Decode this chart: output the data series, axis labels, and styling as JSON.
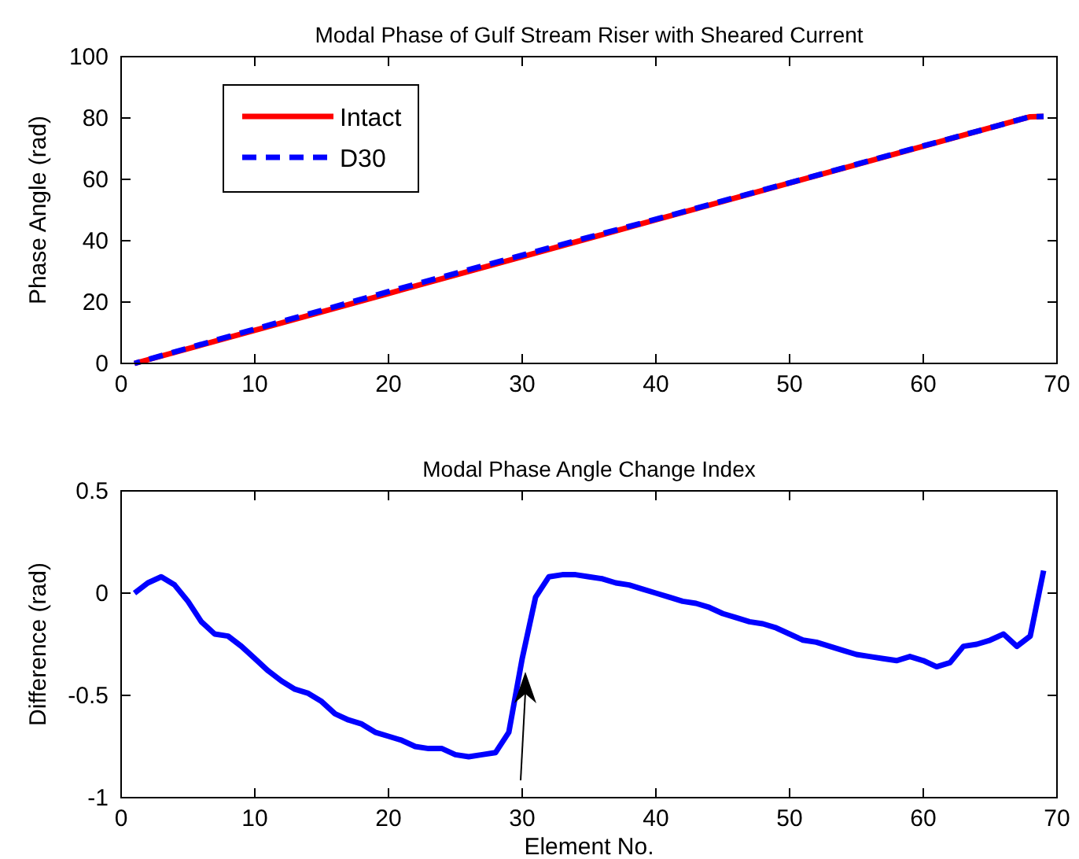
{
  "chart_data": [
    {
      "type": "line",
      "title": "Modal Phase of Gulf Stream Riser with Sheared Current",
      "ylabel": "Phase Angle (rad)",
      "xlim": [
        0,
        70
      ],
      "xticks": [
        0,
        10,
        20,
        30,
        40,
        50,
        60,
        70
      ],
      "ylim": [
        0,
        100
      ],
      "yticks": [
        0,
        20,
        40,
        60,
        80,
        100
      ],
      "legend": "top left",
      "series": [
        {
          "name": "Intact",
          "color": "#ff0000",
          "line_style": "solid",
          "x": [
            1,
            10,
            20,
            30,
            40,
            50,
            60,
            68,
            69
          ],
          "values": [
            0,
            10.8,
            22.8,
            34.8,
            46.8,
            58.8,
            70.8,
            80.4,
            80.5
          ]
        },
        {
          "name": "D30",
          "color": "#0000ff",
          "line_style": "dashed",
          "x": [
            1,
            10,
            20,
            30,
            40,
            50,
            60,
            68,
            69
          ],
          "values": [
            0,
            11.2,
            23.4,
            35.3,
            47.0,
            58.9,
            70.9,
            80.4,
            80.5
          ]
        }
      ]
    },
    {
      "type": "line",
      "title": "Modal Phase Angle Change Index",
      "xlabel": "Element No.",
      "ylabel": "Difference (rad)",
      "xlim": [
        0,
        70
      ],
      "xticks": [
        0,
        10,
        20,
        30,
        40,
        50,
        60,
        70
      ],
      "ylim": [
        -1,
        0.5
      ],
      "yticks": [
        -1,
        -0.5,
        0,
        0.5
      ],
      "series": [
        {
          "color": "#0000ff",
          "line_style": "solid",
          "x": [
            1,
            2,
            3,
            4,
            5,
            6,
            7,
            8,
            9,
            10,
            11,
            12,
            13,
            14,
            15,
            16,
            17,
            18,
            19,
            20,
            21,
            22,
            23,
            24,
            25,
            26,
            27,
            28,
            29,
            30,
            31,
            32,
            33,
            34,
            35,
            36,
            37,
            38,
            39,
            40,
            41,
            42,
            43,
            44,
            45,
            46,
            47,
            48,
            49,
            50,
            51,
            52,
            53,
            54,
            55,
            56,
            57,
            58,
            59,
            60,
            61,
            62,
            63,
            64,
            65,
            66,
            67,
            68,
            69
          ],
          "values": [
            0,
            0.05,
            0.08,
            0.04,
            -0.04,
            -0.14,
            -0.2,
            -0.21,
            -0.26,
            -0.32,
            -0.38,
            -0.43,
            -0.47,
            -0.49,
            -0.53,
            -0.59,
            -0.62,
            -0.64,
            -0.68,
            -0.7,
            -0.72,
            -0.75,
            -0.76,
            -0.76,
            -0.79,
            -0.8,
            -0.79,
            -0.78,
            -0.68,
            -0.32,
            -0.02,
            0.08,
            0.09,
            0.09,
            0.08,
            0.07,
            0.05,
            0.04,
            0.02,
            0,
            -0.02,
            -0.04,
            -0.05,
            -0.07,
            -0.1,
            -0.12,
            -0.14,
            -0.15,
            -0.17,
            -0.2,
            -0.23,
            -0.24,
            -0.26,
            -0.28,
            -0.3,
            -0.31,
            -0.32,
            -0.33,
            -0.31,
            -0.33,
            -0.36,
            -0.34,
            -0.26,
            -0.25,
            -0.23,
            -0.2,
            -0.26,
            -0.21,
            0.11
          ]
        }
      ]
    }
  ]
}
